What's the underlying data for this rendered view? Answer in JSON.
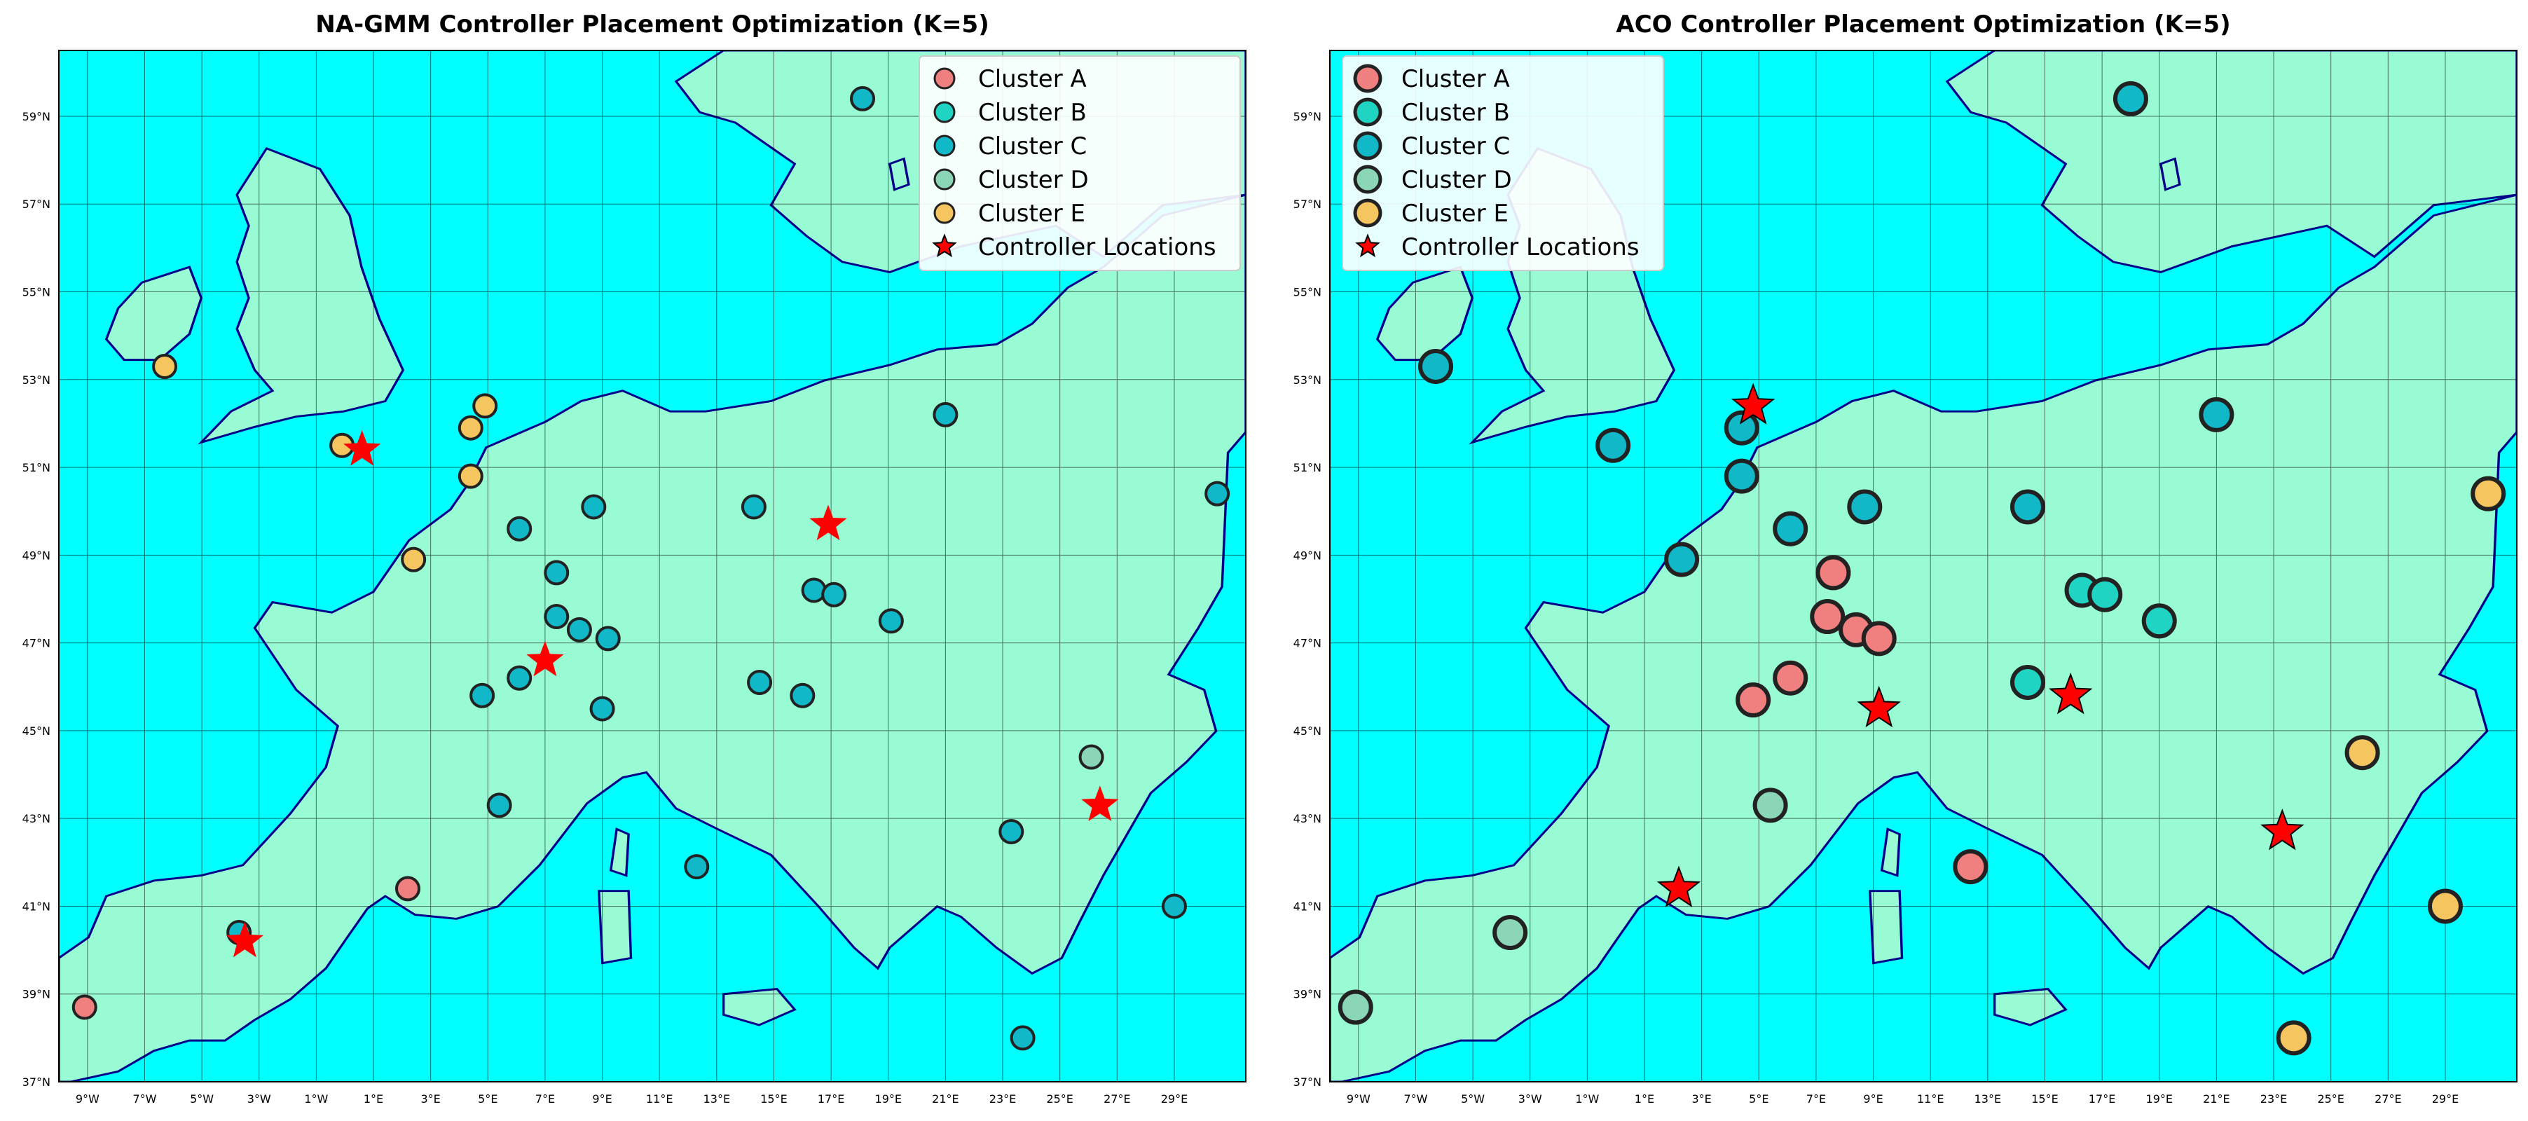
{
  "colors": {
    "sea": "#00FFFF",
    "land": "#98FBD4",
    "coast": "#00008B",
    "border": "#000000",
    "grid": "#000000",
    "star": "#FF0000",
    "cluster_fill": {
      "Cluster A": "#F08080",
      "Cluster B": "#20D4C4",
      "Cluster C": "#10B8C8",
      "Cluster D": "#8CD6B8",
      "Cluster E": "#F5C660"
    }
  },
  "chart_data": [
    {
      "type": "scatter",
      "title": "NA-GMM Controller Placement Optimization (K=5)",
      "xlim": [
        -10,
        31.5
      ],
      "ylim": [
        37,
        60.5
      ],
      "xticks": [
        -9,
        -7,
        -5,
        -3,
        -1,
        1,
        3,
        5,
        7,
        9,
        11,
        13,
        15,
        17,
        19,
        21,
        23,
        25,
        27,
        29
      ],
      "xtick_labels": [
        "9°W",
        "7°W",
        "5°W",
        "3°W",
        "1°W",
        "1°E",
        "3°E",
        "5°E",
        "7°E",
        "9°E",
        "11°E",
        "13°E",
        "15°E",
        "17°E",
        "19°E",
        "21°E",
        "23°E",
        "25°E",
        "27°E",
        "29°E"
      ],
      "yticks": [
        37,
        39,
        41,
        43,
        45,
        47,
        49,
        51,
        53,
        55,
        57,
        59
      ],
      "ytick_labels": [
        "37°N",
        "39°N",
        "41°N",
        "43°N",
        "45°N",
        "47°N",
        "49°N",
        "51°N",
        "53°N",
        "55°N",
        "57°N",
        "59°N"
      ],
      "grid": true,
      "legend_position": "top-right",
      "legend": [
        "Cluster A",
        "Cluster B",
        "Cluster C",
        "Cluster D",
        "Cluster E",
        "Controller Locations"
      ],
      "series": [
        {
          "name": "Cluster A",
          "points": [
            [
              -9.1,
              38.7
            ],
            [
              2.2,
              41.4
            ]
          ]
        },
        {
          "name": "Cluster C",
          "points": [
            [
              -3.7,
              40.4
            ],
            [
              4.8,
              45.8
            ],
            [
              5.4,
              43.3
            ],
            [
              6.1,
              46.2
            ],
            [
              6.1,
              49.6
            ],
            [
              7.4,
              47.6
            ],
            [
              7.4,
              48.6
            ],
            [
              8.2,
              47.3
            ],
            [
              9.0,
              45.5
            ],
            [
              8.7,
              50.1
            ],
            [
              9.2,
              47.1
            ],
            [
              12.3,
              41.9
            ],
            [
              14.3,
              50.1
            ],
            [
              14.5,
              46.1
            ],
            [
              16.4,
              48.2
            ],
            [
              16.0,
              45.8
            ],
            [
              17.1,
              48.1
            ],
            [
              19.1,
              47.5
            ],
            [
              21.0,
              52.2
            ],
            [
              23.3,
              42.7
            ],
            [
              23.7,
              38.0
            ],
            [
              29.0,
              41.0
            ],
            [
              30.5,
              50.4
            ],
            [
              18.1,
              59.4
            ]
          ]
        },
        {
          "name": "Cluster D",
          "points": [
            [
              26.1,
              44.4
            ]
          ]
        },
        {
          "name": "Cluster E",
          "points": [
            [
              -6.3,
              53.3
            ],
            [
              -0.1,
              51.5
            ],
            [
              2.4,
              48.9
            ],
            [
              4.4,
              50.8
            ],
            [
              4.4,
              51.9
            ],
            [
              4.9,
              52.4
            ]
          ]
        },
        {
          "name": "Controller Locations",
          "points": [
            [
              -3.5,
              40.2
            ],
            [
              0.6,
              51.4
            ],
            [
              7.0,
              46.6
            ],
            [
              16.9,
              49.7
            ],
            [
              26.4,
              43.3
            ]
          ]
        }
      ]
    },
    {
      "type": "scatter",
      "title": "ACO Controller Placement Optimization (K=5)",
      "xlim": [
        -10,
        31.5
      ],
      "ylim": [
        37,
        60.5
      ],
      "xticks": [
        -9,
        -7,
        -5,
        -3,
        -1,
        1,
        3,
        5,
        7,
        9,
        11,
        13,
        15,
        17,
        19,
        21,
        23,
        25,
        27,
        29
      ],
      "xtick_labels": [
        "9°W",
        "7°W",
        "5°W",
        "3°W",
        "1°W",
        "1°E",
        "3°E",
        "5°E",
        "7°E",
        "9°E",
        "11°E",
        "13°E",
        "15°E",
        "17°E",
        "19°E",
        "21°E",
        "23°E",
        "25°E",
        "27°E",
        "29°E"
      ],
      "yticks": [
        37,
        39,
        41,
        43,
        45,
        47,
        49,
        51,
        53,
        55,
        57,
        59
      ],
      "ytick_labels": [
        "37°N",
        "39°N",
        "41°N",
        "43°N",
        "45°N",
        "47°N",
        "49°N",
        "51°N",
        "53°N",
        "55°N",
        "57°N",
        "59°N"
      ],
      "grid": true,
      "legend_position": "top-left",
      "legend": [
        "Cluster A",
        "Cluster B",
        "Cluster C",
        "Cluster D",
        "Cluster E",
        "Controller Locations"
      ],
      "series": [
        {
          "name": "Cluster A",
          "points": [
            [
              4.8,
              45.7
            ],
            [
              6.1,
              46.2
            ],
            [
              7.4,
              47.6
            ],
            [
              7.6,
              48.6
            ],
            [
              8.4,
              47.3
            ],
            [
              9.2,
              47.1
            ],
            [
              12.4,
              41.9
            ]
          ]
        },
        {
          "name": "Cluster B",
          "points": [
            [
              14.4,
              46.1
            ],
            [
              16.3,
              48.2
            ],
            [
              17.1,
              48.1
            ],
            [
              19.0,
              47.5
            ]
          ]
        },
        {
          "name": "Cluster C",
          "points": [
            [
              -6.3,
              53.3
            ],
            [
              -0.1,
              51.5
            ],
            [
              2.3,
              48.9
            ],
            [
              4.4,
              50.8
            ],
            [
              4.4,
              51.9
            ],
            [
              6.1,
              49.6
            ],
            [
              8.7,
              50.1
            ],
            [
              14.4,
              50.1
            ],
            [
              21.0,
              52.2
            ],
            [
              18.0,
              59.4
            ]
          ]
        },
        {
          "name": "Cluster D",
          "points": [
            [
              -9.1,
              38.7
            ],
            [
              -3.7,
              40.4
            ],
            [
              5.4,
              43.3
            ]
          ]
        },
        {
          "name": "Cluster E",
          "points": [
            [
              26.1,
              44.5
            ],
            [
              23.7,
              38.0
            ],
            [
              29.0,
              41.0
            ],
            [
              30.5,
              50.4
            ]
          ]
        },
        {
          "name": "Controller Locations",
          "points": [
            [
              4.8,
              52.4
            ],
            [
              2.2,
              41.4
            ],
            [
              9.2,
              45.5
            ],
            [
              15.9,
              45.8
            ],
            [
              23.3,
              42.7
            ]
          ]
        }
      ]
    }
  ]
}
